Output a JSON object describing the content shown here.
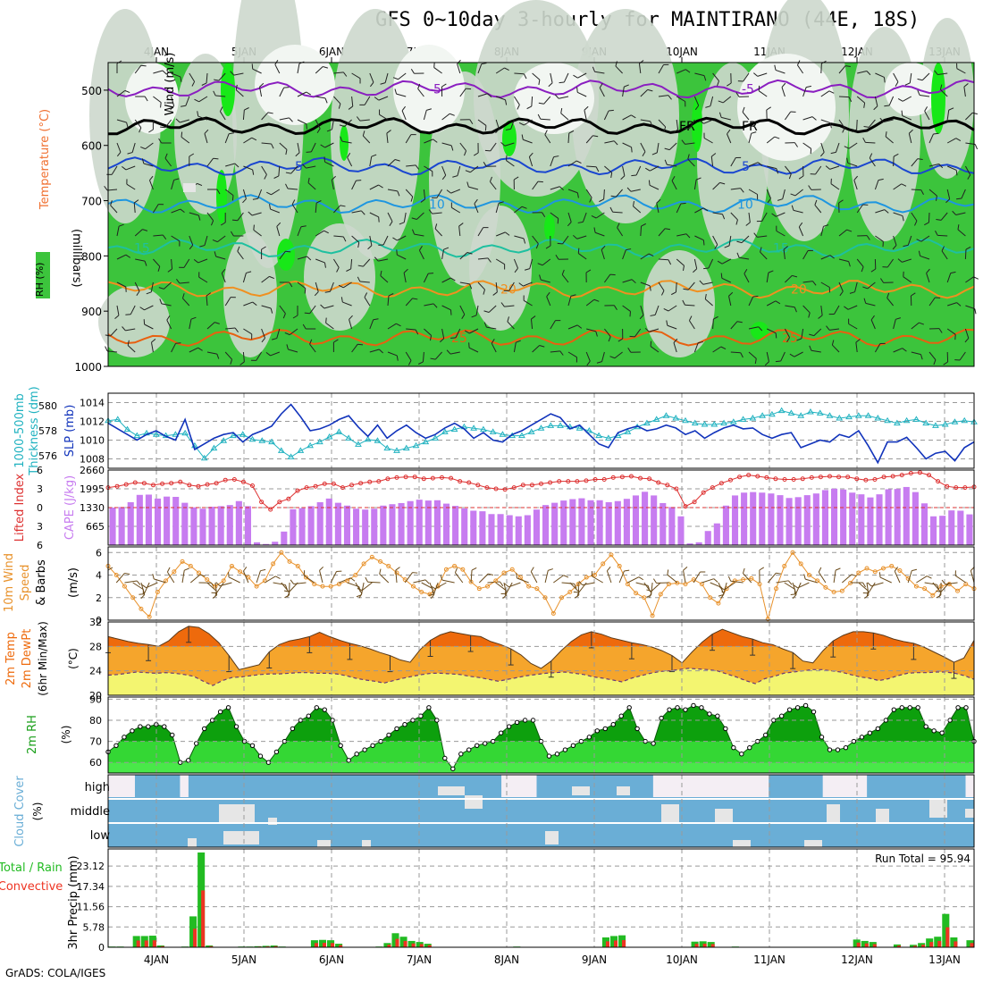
{
  "title": "GFS 0~10day 3-hourly for MAINTIRANO (44E, 18S)",
  "credit": "GrADS: COLA/IGES",
  "days": [
    "4JAN",
    "5JAN",
    "6JAN",
    "7JAN",
    "8JAN",
    "9JAN",
    "10JAN",
    "11JAN",
    "12JAN",
    "13JAN"
  ],
  "colors": {
    "rh_green": "#3cc43c",
    "rh_light": "#cdd8cd",
    "cape": "#c77cf0",
    "lifted": "#dd3030",
    "wind": "#e8922c",
    "temp_dark": "#ee6a0c",
    "temp_mid": "#f5a52c",
    "dew_yellow": "#f3f570",
    "rh2m_dark": "#0da00d",
    "rh2m_light": "#3ce03c",
    "cloud": "#6aaed6",
    "precip_green": "#22bb22",
    "precip_red": "#ee3322",
    "slp": "#1133bb",
    "thick": "#20b2c0"
  },
  "chart_data": [
    {
      "panel": "upper-air",
      "type": "heatmap",
      "ylabel": "(millibars)",
      "legend": [
        "RH (%)",
        "Temperature (°C)",
        "Wind (m/s)"
      ],
      "yticks": [
        500,
        600,
        700,
        800,
        900,
        1000
      ],
      "ylim": [
        450,
        1000
      ],
      "isotherms": [
        {
          "label": "-5",
          "level": 498,
          "color": "#8a1ec0"
        },
        {
          "label": "FR",
          "level": 565,
          "color": "#000000"
        },
        {
          "label": "5",
          "level": 638,
          "color": "#1a46d0"
        },
        {
          "label": "10",
          "level": 706,
          "color": "#1e96e0"
        },
        {
          "label": "15",
          "level": 786,
          "color": "#1ec0a0"
        },
        {
          "label": "20",
          "level": 860,
          "color": "#f09020"
        },
        {
          "label": "25",
          "level": 948,
          "color": "#e86010"
        }
      ]
    },
    {
      "panel": "slp-thickness",
      "type": "line",
      "ylabel": "SLP (mb)",
      "ylabel2": "1000-500mb Thickness (dm)",
      "yticks_left": [
        576,
        578,
        580
      ],
      "yticks_right": [
        1008,
        1010,
        1012,
        1014
      ],
      "ylim_slp": [
        1007,
        1015
      ],
      "slp": [
        1011.8,
        1011.2,
        1010.6,
        1010.0,
        1010.6,
        1011.0,
        1010.4,
        1010.0,
        1012.2,
        1009.0,
        1009.6,
        1010.2,
        1010.6,
        1010.8,
        1009.8,
        1010.6,
        1011.0,
        1011.5,
        1012.8,
        1013.8,
        1012.5,
        1011.0,
        1011.2,
        1011.6,
        1012.2,
        1012.6,
        1011.4,
        1010.4,
        1011.6,
        1010.2,
        1011.0,
        1011.6,
        1010.8,
        1010.2,
        1010.6,
        1011.3,
        1011.8,
        1011.2,
        1010.2,
        1010.8,
        1010.0,
        1009.8,
        1010.6,
        1011.0,
        1011.6,
        1012.2,
        1012.8,
        1012.4,
        1011.2,
        1011.6,
        1010.6,
        1009.6,
        1009.2,
        1010.8,
        1011.2,
        1011.5,
        1011.0,
        1011.2,
        1011.6,
        1011.3,
        1010.6,
        1011.0,
        1010.2,
        1010.8,
        1011.3,
        1011.6,
        1011.2,
        1011.3,
        1010.6,
        1010.2,
        1010.6,
        1010.8,
        1009.2,
        1009.6,
        1010.0,
        1009.8,
        1010.6,
        1010.3,
        1011.0,
        1009.4,
        1007.6,
        1009.8,
        1009.8,
        1010.3,
        1009.2,
        1008.0,
        1008.6,
        1008.8,
        1007.8,
        1009.2,
        1009.8
      ],
      "thickness": [
        578.8,
        578.9,
        578.1,
        577.6,
        577.8,
        577.7,
        577.6,
        577.7,
        577.8,
        576.8,
        575.8,
        576.6,
        577.2,
        577.6,
        577.7,
        577.3,
        577.2,
        577.1,
        576.4,
        575.9,
        576.4,
        576.8,
        577.1,
        577.5,
        577.9,
        577.4,
        576.9,
        577.3,
        577.2,
        576.6,
        576.4,
        576.6,
        576.8,
        577.1,
        577.4,
        577.9,
        578.1,
        578.3,
        578.2,
        578.1,
        577.9,
        577.7,
        577.6,
        577.6,
        577.9,
        578.2,
        578.4,
        578.4,
        578.3,
        578.2,
        578.0,
        577.6,
        577.4,
        577.6,
        577.9,
        578.3,
        578.6,
        578.9,
        579.2,
        579.0,
        578.8,
        578.6,
        578.5,
        578.5,
        578.6,
        578.7,
        578.9,
        579.0,
        579.2,
        579.3,
        579.6,
        579.4,
        579.2,
        579.5,
        579.4,
        579.2,
        579.0,
        579.1,
        579.2,
        579.2,
        579.0,
        578.8,
        578.6,
        578.8,
        578.9,
        578.6,
        578.4,
        578.5,
        578.7,
        578.8,
        578.7
      ]
    },
    {
      "panel": "cape-lifted",
      "type": "bar",
      "ylabel": "CAPE (J/kg)",
      "ylabel2": "Lifted Index",
      "yticks_cape": [
        665,
        1330,
        1995,
        2660
      ],
      "yticks_li": [
        -6,
        -3,
        0,
        3,
        6
      ],
      "ylim": [
        0,
        2660
      ],
      "cape": [
        1330,
        1350,
        1520,
        1780,
        1790,
        1650,
        1720,
        1710,
        1500,
        1340,
        1290,
        1360,
        1380,
        1420,
        1560,
        1380,
        100,
        40,
        120,
        480,
        1270,
        1310,
        1380,
        1520,
        1650,
        1500,
        1400,
        1290,
        1260,
        1290,
        1400,
        1450,
        1490,
        1560,
        1610,
        1580,
        1590,
        1470,
        1390,
        1300,
        1220,
        1200,
        1100,
        1100,
        1060,
        1020,
        1060,
        1260,
        1420,
        1500,
        1580,
        1630,
        1660,
        1590,
        1590,
        1520,
        1560,
        1640,
        1760,
        1890,
        1760,
        1490,
        1350,
        1020,
        60,
        100,
        500,
        770,
        1400,
        1760,
        1860,
        1880,
        1860,
        1830,
        1770,
        1670,
        1700,
        1770,
        1830,
        1950,
        2000,
        1970,
        1860,
        1800,
        1690,
        1800,
        1980,
        1990,
        2060,
        1880,
        1480,
        1020,
        1040,
        1230,
        1220,
        1090
      ],
      "lifted_index": [
        -3.2,
        -3.4,
        -3.7,
        -4.0,
        -3.9,
        -3.6,
        -3.8,
        -3.9,
        -4.1,
        -3.6,
        -3.4,
        -3.7,
        -3.9,
        -4.4,
        -4.5,
        -4.1,
        -3.5,
        -0.9,
        0.3,
        -0.9,
        -1.4,
        -2.7,
        -3.2,
        -3.4,
        -3.8,
        -3.8,
        -3.2,
        -3.6,
        -3.9,
        -4.1,
        -4.2,
        -4.6,
        -4.8,
        -4.9,
        -4.9,
        -4.6,
        -4.7,
        -4.8,
        -4.7,
        -4.2,
        -4.0,
        -3.6,
        -3.2,
        -3.0,
        -2.9,
        -3.2,
        -3.6,
        -3.6,
        -3.8,
        -4.0,
        -4.2,
        -4.2,
        -4.2,
        -4.3,
        -4.5,
        -4.5,
        -4.8,
        -4.9,
        -5.0,
        -4.7,
        -4.6,
        -4.0,
        -3.6,
        -3.0,
        -0.2,
        -0.9,
        -2.4,
        -3.2,
        -3.9,
        -4.4,
        -4.9,
        -5.2,
        -5.0,
        -4.8,
        -4.6,
        -4.5,
        -4.5,
        -4.6,
        -4.8,
        -4.9,
        -5.0,
        -4.9,
        -4.9,
        -4.6,
        -4.4,
        -4.5,
        -4.9,
        -5.0,
        -5.2,
        -5.5,
        -5.6,
        -5.2,
        -4.2,
        -3.4,
        -3.2,
        -3.2,
        -3.3
      ]
    },
    {
      "panel": "wind10m",
      "type": "line",
      "ylabel": "10m Wind Speed & Barbs (m/s)",
      "yticks": [
        0,
        2,
        4,
        6
      ],
      "ylim": [
        0,
        6.5
      ],
      "speed": [
        4.8,
        4.0,
        3.0,
        2.0,
        1.0,
        0.3,
        2.5,
        3.5,
        4.3,
        5.2,
        4.8,
        4.2,
        3.6,
        3.0,
        3.5,
        4.8,
        4.3,
        3.8,
        3.0,
        3.5,
        5.0,
        6.0,
        5.2,
        4.8,
        3.8,
        3.2,
        3.0,
        3.0,
        3.2,
        3.5,
        4.0,
        5.0,
        5.6,
        5.2,
        4.8,
        4.2,
        3.6,
        3.0,
        2.5,
        2.3,
        3.0,
        4.5,
        4.8,
        4.5,
        3.4,
        2.8,
        3.0,
        3.5,
        4.2,
        4.5,
        3.8,
        3.0,
        2.8,
        2.0,
        0.6,
        2.0,
        2.5,
        3.2,
        3.8,
        4.0,
        5.0,
        5.8,
        4.8,
        3.2,
        2.4,
        2.0,
        0.4,
        2.3,
        3.2,
        3.3,
        3.2,
        3.6,
        3.2,
        2.0,
        1.5,
        2.8,
        3.5,
        3.6,
        3.7,
        3.2,
        0.1,
        2.8,
        4.8,
        6.0,
        5.0,
        4.0,
        3.5,
        2.9,
        2.5,
        2.6,
        3.3,
        4.2,
        4.6,
        4.3,
        4.6,
        4.8,
        4.4,
        3.7,
        3.0,
        2.8,
        2.2,
        3.0,
        3.2,
        2.6,
        3.2,
        2.8
      ]
    },
    {
      "panel": "temp2m",
      "type": "area",
      "ylabel": "2m Temp 2m DewPt (6hr Min/Max) (°C)",
      "yticks": [
        20,
        24,
        28,
        32
      ],
      "ylim": [
        20,
        32
      ],
      "temp": [
        29.6,
        29.2,
        28.8,
        28.5,
        28.3,
        28.0,
        28.9,
        30.4,
        31.3,
        31.1,
        30.1,
        28.6,
        26.5,
        24.2,
        24.6,
        25.0,
        27.1,
        28.3,
        28.9,
        29.2,
        29.6,
        30.3,
        29.6,
        29.0,
        28.5,
        28.1,
        27.6,
        27.0,
        26.5,
        25.8,
        25.4,
        27.5,
        29.0,
        29.9,
        30.4,
        30.1,
        29.8,
        29.6,
        28.8,
        28.3,
        27.6,
        26.6,
        25.2,
        24.4,
        25.6,
        27.3,
        28.8,
        29.9,
        30.4,
        30.0,
        29.4,
        29.0,
        28.6,
        28.3,
        27.9,
        27.3,
        26.5,
        25.3,
        27.1,
        28.7,
        30.0,
        30.8,
        30.2,
        29.6,
        29.2,
        28.6,
        28.3,
        27.6,
        27.0,
        25.6,
        25.3,
        27.3,
        28.9,
        29.8,
        30.4,
        30.4,
        30.2,
        29.8,
        29.2,
        28.8,
        28.5,
        27.9,
        27.1,
        26.3,
        25.4,
        26.1,
        29.0
      ],
      "dewpoint": [
        23.3,
        23.4,
        23.6,
        23.8,
        23.7,
        23.6,
        23.7,
        23.6,
        23.4,
        23.1,
        22.3,
        21.6,
        22.4,
        22.9,
        23.0,
        23.2,
        23.4,
        23.5,
        23.5,
        23.6,
        23.7,
        23.7,
        23.6,
        23.6,
        23.5,
        23.2,
        22.8,
        22.5,
        22.3,
        22.0,
        22.4,
        22.8,
        23.1,
        23.4,
        23.6,
        23.6,
        23.5,
        23.4,
        23.1,
        22.9,
        22.6,
        22.3,
        22.6,
        22.9,
        23.2,
        23.4,
        23.6,
        23.7,
        23.8,
        23.6,
        23.4,
        23.0,
        22.8,
        22.5,
        22.2,
        22.8,
        23.2,
        23.6,
        23.9,
        24.0,
        24.2,
        24.4,
        24.3,
        24.2,
        24.0,
        23.5,
        23.0,
        22.4,
        21.9,
        22.7,
        23.1,
        23.6,
        23.8,
        24.0,
        24.2,
        24.2,
        24.0,
        23.8,
        23.4,
        23.0,
        22.8,
        22.4,
        22.7,
        23.2,
        23.6,
        23.7,
        23.7,
        23.8,
        23.8,
        23.6,
        23.2,
        22.6
      ]
    },
    {
      "panel": "rh2m",
      "type": "area",
      "ylabel": "2m RH (%)",
      "yticks": [
        60,
        70,
        80,
        90
      ],
      "ylim": [
        55,
        91
      ],
      "rh": [
        65,
        68,
        72,
        75,
        77,
        77,
        78,
        77,
        73,
        60,
        61,
        69,
        76,
        80,
        84,
        86,
        77,
        70,
        68,
        63,
        60,
        65,
        70,
        76,
        80,
        82,
        86,
        85,
        80,
        68,
        61,
        64,
        66,
        68,
        70,
        73,
        76,
        78,
        80,
        82,
        86,
        80,
        62,
        57,
        64,
        66,
        68,
        69,
        70,
        74,
        77,
        79,
        80,
        80,
        70,
        63,
        64,
        66,
        68,
        70,
        72,
        75,
        76,
        78,
        82,
        86,
        76,
        70,
        69,
        81,
        85,
        86,
        85,
        87,
        86,
        83,
        82,
        76,
        67,
        64,
        67,
        70,
        73,
        80,
        82,
        85,
        86,
        87,
        84,
        72,
        66,
        66,
        67,
        70,
        72,
        74,
        76,
        80,
        85,
        86,
        86,
        86,
        77,
        75,
        74,
        80,
        86,
        86,
        70
      ]
    },
    {
      "panel": "cloud",
      "type": "heatmap",
      "ylabel": "Cloud Cover (%)",
      "rows": [
        "high",
        "middle",
        "low"
      ]
    },
    {
      "panel": "precip",
      "type": "bar",
      "ylabel": "3hr Precip (mm)",
      "legend": [
        "Total / Rain",
        "Convective"
      ],
      "yticks": [
        0,
        5.78,
        11.56,
        17.34,
        23.12
      ],
      "ylim": [
        0,
        28
      ],
      "annotation": "Run Total = 95.94",
      "total": [
        0.2,
        0.2,
        0.1,
        3.2,
        3.2,
        3.3,
        0.5,
        0,
        0,
        0.2,
        8.8,
        27.0,
        0.5,
        0,
        0,
        0,
        0.2,
        0.2,
        0.3,
        0.4,
        0.5,
        0.2,
        0.1,
        0.1,
        0,
        2.0,
        2.1,
        2.0,
        1.0,
        0,
        0,
        0,
        0,
        0.2,
        1.2,
        4.0,
        3.0,
        1.8,
        1.5,
        1.0,
        0.1,
        0,
        0,
        0.1,
        0,
        0,
        0,
        0,
        0,
        0,
        0.2,
        0,
        0,
        0,
        0,
        0,
        0,
        0,
        0,
        0,
        0,
        2.8,
        3.2,
        3.4,
        0.1,
        0,
        0,
        0,
        0,
        0,
        0,
        0,
        1.6,
        1.7,
        1.5,
        0,
        0,
        0.2,
        0,
        0,
        0,
        0,
        0,
        0,
        0,
        0,
        0,
        0,
        0,
        0,
        0,
        0,
        2.2,
        1.8,
        1.5,
        0,
        0,
        0.8,
        0,
        0.7,
        1.2,
        2.5,
        3.0,
        9.5,
        2.8,
        0,
        2.0
      ]
    }
  ]
}
